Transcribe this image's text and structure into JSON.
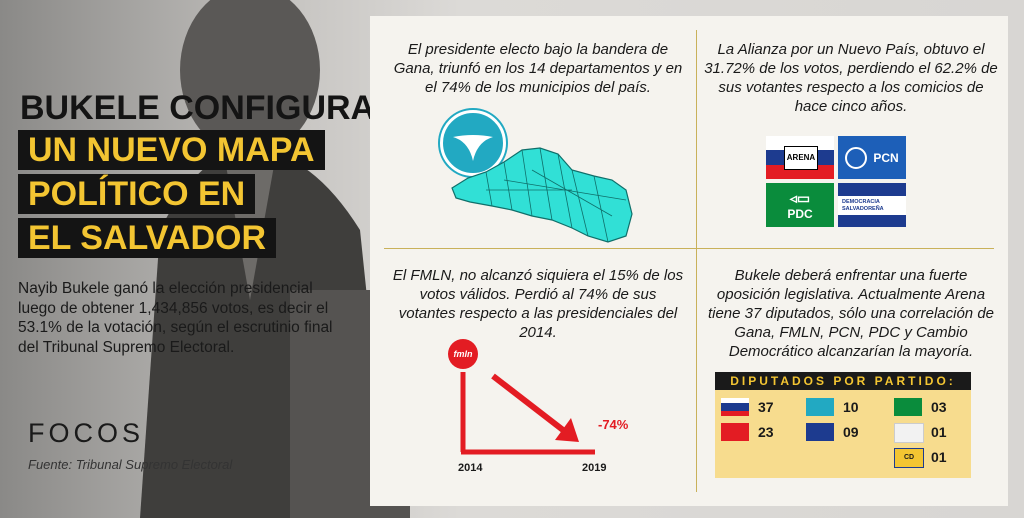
{
  "title": {
    "line1": "BUKELE CONFIGURA",
    "line2": "UN NUEVO MAPA",
    "line3": "POLÍTICO EN",
    "line4": "EL SALVADOR"
  },
  "intro": "Nayib Bukele ganó la elección presidencial luego de obtener 1,434,856 votos, es decir el 53.1% de la votación, según el escrutinio final del Tribunal Supremo Electoral.",
  "brand": {
    "logo": "FOCOS",
    "source": "Fuente: Tribunal Supremo Electoral"
  },
  "panels": {
    "gana": {
      "text": "El presidente electo bajo la bandera de Gana, triunfó en los 14 departamentos y en el 74% de los municipios del país."
    },
    "alianza": {
      "text": "La Alianza por un Nuevo País, obtuvo el 31.72% de los votos, perdiendo el 62.2% de sus votantes respecto a los comicios de hace cinco años.",
      "logos": {
        "arena": "ARENA",
        "pcn": "PCN",
        "pdc": "PDC",
        "ds": "DEMOCRACIA SALVADOREÑA"
      }
    },
    "fmln": {
      "text": "El FMLN, no alcanzó siquiera el 15% de los votos válidos. Perdió al 74% de sus votantes respecto a las presidenciales del 2014.",
      "logo": "fmln",
      "change": "-74%",
      "year_start": "2014",
      "year_end": "2019"
    },
    "legislative": {
      "text": "Bukele deberá enfrentar una fuerte oposición legislativa. Actualmente Arena tiene 37 diputados, sólo una correlación de Gana, FMLN, PCN, PDC y Cambio Democrático alcanzarían la mayoría."
    }
  },
  "diputados": {
    "header": "DIPUTADOS POR PARTIDO:",
    "arena": "37",
    "fmln": "23",
    "gana": "10",
    "pcn": "09",
    "pdc": "03",
    "independiente": "01",
    "cd": "01",
    "cd_label": "CD"
  },
  "colors": {
    "accent": "#f3c532",
    "gana": "#22a9c2",
    "fmln": "#e31c23",
    "arena_blue": "#1d3b8f",
    "pdc": "#0a8c3c"
  }
}
